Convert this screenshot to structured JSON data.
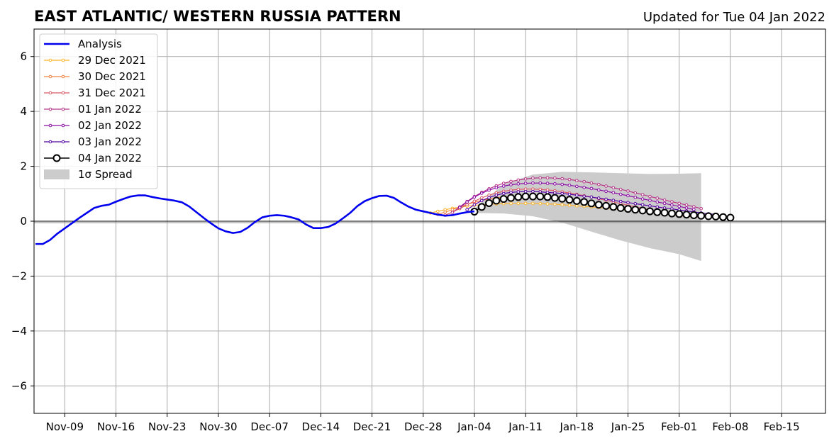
{
  "chart_data": {
    "type": "line",
    "title": "EAST ATLANTIC/ WESTERN RUSSIA PATTERN",
    "updated_label": "Updated for Tue 04 Jan 2022",
    "x_tick_labels": [
      "Nov-09",
      "Nov-16",
      "Nov-23",
      "Nov-30",
      "Dec-07",
      "Dec-14",
      "Dec-21",
      "Dec-28",
      "Jan-04",
      "Jan-11",
      "Jan-18",
      "Jan-25",
      "Feb-01",
      "Feb-08",
      "Feb-15"
    ],
    "x_tick_day_offsets": [
      0,
      7,
      14,
      21,
      28,
      35,
      42,
      49,
      56,
      63,
      70,
      77,
      84,
      91,
      98
    ],
    "xlim_days_from_nov09": [
      -4.2,
      104
    ],
    "ylim": [
      -7,
      7
    ],
    "y_ticks": [
      -6,
      -4,
      -2,
      0,
      2,
      4,
      6
    ],
    "y_tick_labels": [
      "−6",
      "−4",
      "−2",
      "0",
      "2",
      "4",
      "6"
    ],
    "grid": true,
    "zero_line": true,
    "legend_position": "upper-left",
    "legend": [
      {
        "label": "Analysis",
        "color": "#0000ee",
        "kind": "line"
      },
      {
        "label": "29 Dec 2021",
        "color": "#fdb52e",
        "kind": "marker-line"
      },
      {
        "label": "30 Dec 2021",
        "color": "#f48441",
        "kind": "marker-line"
      },
      {
        "label": "31 Dec 2021",
        "color": "#db5c68",
        "kind": "marker-line"
      },
      {
        "label": "01 Jan 2022",
        "color": "#b5368a",
        "kind": "marker-line"
      },
      {
        "label": "02 Jan 2022",
        "color": "#8b0aa5",
        "kind": "marker-line"
      },
      {
        "label": "03 Jan 2022",
        "color": "#5402a3",
        "kind": "marker-line"
      },
      {
        "label": "04 Jan 2022",
        "color": "#000000",
        "kind": "circle-line"
      },
      {
        "label": "1σ Spread",
        "color": "#cccccc",
        "kind": "patch"
      }
    ],
    "analysis": {
      "name": "Analysis",
      "color": "#0000ee",
      "x_dates": [
        "2021-11-05",
        "2021-11-06",
        "2021-11-07",
        "2021-11-08",
        "2021-11-09",
        "2021-11-10",
        "2021-11-11",
        "2021-11-12",
        "2021-11-13",
        "2021-11-14",
        "2021-11-15",
        "2021-11-16",
        "2021-11-17",
        "2021-11-18",
        "2021-11-19",
        "2021-11-20",
        "2021-11-21",
        "2021-11-22",
        "2021-11-23",
        "2021-11-24",
        "2021-11-25",
        "2021-11-26",
        "2021-11-27",
        "2021-11-28",
        "2021-11-29",
        "2021-11-30",
        "2021-12-01",
        "2021-12-02",
        "2021-12-03",
        "2021-12-04",
        "2021-12-05",
        "2021-12-06",
        "2021-12-07",
        "2021-12-08",
        "2021-12-09",
        "2021-12-10",
        "2021-12-11",
        "2021-12-12",
        "2021-12-13",
        "2021-12-14",
        "2021-12-15",
        "2021-12-16",
        "2021-12-17",
        "2021-12-18",
        "2021-12-19",
        "2021-12-20",
        "2021-12-21",
        "2021-12-22",
        "2021-12-23",
        "2021-12-24",
        "2021-12-25",
        "2021-12-26",
        "2021-12-27",
        "2021-12-28",
        "2021-12-29",
        "2021-12-30",
        "2021-12-31",
        "2022-01-01",
        "2022-01-02",
        "2022-01-03",
        "2022-01-04"
      ],
      "y": [
        -0.83,
        -0.83,
        -0.68,
        -0.45,
        -0.26,
        -0.07,
        0.12,
        0.3,
        0.48,
        0.56,
        0.6,
        0.71,
        0.81,
        0.9,
        0.94,
        0.94,
        0.88,
        0.83,
        0.79,
        0.75,
        0.69,
        0.54,
        0.33,
        0.12,
        -0.08,
        -0.26,
        -0.37,
        -0.43,
        -0.39,
        -0.24,
        -0.03,
        0.14,
        0.2,
        0.22,
        0.2,
        0.14,
        0.06,
        -0.12,
        -0.25,
        -0.25,
        -0.21,
        -0.09,
        0.1,
        0.3,
        0.55,
        0.73,
        0.84,
        0.92,
        0.93,
        0.85,
        0.68,
        0.53,
        0.42,
        0.36,
        0.3,
        0.24,
        0.2,
        0.22,
        0.28,
        0.33,
        0.36
      ]
    },
    "spread": {
      "label": "1σ Spread",
      "color": "#cccccc",
      "x_dates": [
        "2022-01-04",
        "2022-01-08",
        "2022-01-12",
        "2022-01-16",
        "2022-01-20",
        "2022-01-24",
        "2022-01-28",
        "2022-02-01",
        "2022-02-04"
      ],
      "upper": [
        0.45,
        1.35,
        1.7,
        1.8,
        1.78,
        1.75,
        1.72,
        1.73,
        1.75
      ],
      "lower": [
        0.3,
        0.28,
        0.18,
        -0.05,
        -0.38,
        -0.7,
        -0.98,
        -1.2,
        -1.45
      ]
    },
    "series": [
      {
        "name": "29 Dec 2021",
        "color": "#fdb52e",
        "start_date": "2021-12-29",
        "y": [
          0.3,
          0.36,
          0.42,
          0.47,
          0.51,
          0.55,
          0.58,
          0.6,
          0.62,
          0.63,
          0.64,
          0.65,
          0.65,
          0.65,
          0.65,
          0.64,
          0.63,
          0.62,
          0.6,
          0.58,
          0.56,
          0.54,
          0.52,
          0.5,
          0.47,
          0.45,
          0.42,
          0.4,
          0.37,
          0.34,
          0.32,
          0.29,
          0.26,
          0.24,
          0.21,
          0.19
        ]
      },
      {
        "name": "30 Dec 2021",
        "color": "#f48441",
        "start_date": "2021-12-30",
        "y": [
          0.25,
          0.33,
          0.42,
          0.52,
          0.61,
          0.69,
          0.76,
          0.81,
          0.85,
          0.88,
          0.89,
          0.9,
          0.9,
          0.89,
          0.88,
          0.86,
          0.84,
          0.81,
          0.78,
          0.74,
          0.7,
          0.66,
          0.62,
          0.58,
          0.53,
          0.49,
          0.45,
          0.41,
          0.37,
          0.33,
          0.29,
          0.26,
          0.23,
          0.2,
          0.17,
          0.15
        ]
      },
      {
        "name": "31 Dec 2021",
        "color": "#db5c68",
        "start_date": "2021-12-31",
        "y": [
          0.22,
          0.33,
          0.46,
          0.6,
          0.73,
          0.85,
          0.95,
          1.03,
          1.09,
          1.13,
          1.16,
          1.17,
          1.17,
          1.16,
          1.14,
          1.11,
          1.07,
          1.03,
          0.98,
          0.93,
          0.88,
          0.82,
          0.76,
          0.7,
          0.64,
          0.58,
          0.52,
          0.47,
          0.41,
          0.36,
          0.31,
          0.27,
          0.23,
          0.19,
          0.16,
          0.14
        ]
      },
      {
        "name": "01 Jan 2022",
        "color": "#b5368a",
        "start_date": "2022-01-01",
        "y": [
          0.32,
          0.52,
          0.72,
          0.9,
          1.05,
          1.18,
          1.29,
          1.38,
          1.45,
          1.5,
          1.54,
          1.57,
          1.58,
          1.58,
          1.57,
          1.55,
          1.52,
          1.48,
          1.44,
          1.39,
          1.34,
          1.28,
          1.22,
          1.16,
          1.1,
          1.03,
          0.97,
          0.9,
          0.84,
          0.77,
          0.71,
          0.65,
          0.59,
          0.53,
          0.46
        ]
      },
      {
        "name": "02 Jan 2022",
        "color": "#8b0aa5",
        "start_date": "2022-01-02",
        "y": [
          0.5,
          0.7,
          0.88,
          1.02,
          1.13,
          1.22,
          1.28,
          1.33,
          1.36,
          1.38,
          1.39,
          1.39,
          1.38,
          1.36,
          1.34,
          1.31,
          1.27,
          1.23,
          1.19,
          1.14,
          1.09,
          1.04,
          0.98,
          0.93,
          0.87,
          0.81,
          0.76,
          0.7,
          0.65,
          0.59,
          0.54,
          0.48,
          0.43
        ]
      },
      {
        "name": "03 Jan 2022",
        "color": "#5402a3",
        "start_date": "2022-01-03",
        "y": [
          0.42,
          0.6,
          0.75,
          0.86,
          0.95,
          1.01,
          1.05,
          1.07,
          1.08,
          1.08,
          1.07,
          1.05,
          1.03,
          1.01,
          0.98,
          0.95,
          0.91,
          0.88,
          0.84,
          0.8,
          0.76,
          0.72,
          0.68,
          0.64,
          0.6,
          0.56,
          0.52,
          0.48,
          0.45,
          0.41,
          0.37,
          0.34,
          0.3,
          0.27,
          0.25
        ]
      },
      {
        "name": "04 Jan 2022",
        "color": "#000000",
        "start_date": "2022-01-04",
        "y": [
          0.35,
          0.52,
          0.66,
          0.75,
          0.81,
          0.85,
          0.88,
          0.9,
          0.9,
          0.9,
          0.88,
          0.85,
          0.82,
          0.78,
          0.74,
          0.7,
          0.65,
          0.6,
          0.56,
          0.52,
          0.48,
          0.45,
          0.42,
          0.39,
          0.36,
          0.33,
          0.31,
          0.28,
          0.26,
          0.24,
          0.22,
          0.2,
          0.18,
          0.17,
          0.15,
          0.13
        ]
      }
    ]
  }
}
